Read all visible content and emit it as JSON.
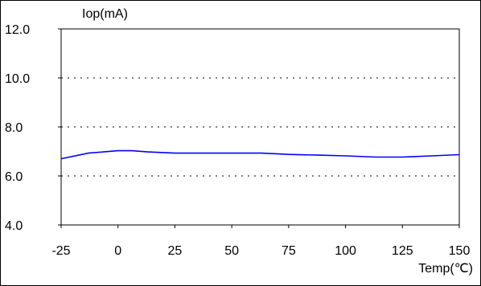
{
  "chart_data": {
    "type": "line",
    "title": "",
    "ylabel": "Iop(mA)",
    "xlabel": "Temp(℃)",
    "xlim": [
      -25,
      150
    ],
    "ylim": [
      4.0,
      12.0
    ],
    "xticks": [
      -25,
      0,
      25,
      50,
      75,
      100,
      125,
      150
    ],
    "xtick_labels": [
      "-25",
      "0",
      "25",
      "50",
      "75",
      "100",
      "125",
      "150"
    ],
    "yticks": [
      4.0,
      6.0,
      8.0,
      10.0,
      12.0
    ],
    "ytick_labels": [
      "4.0",
      "6.0",
      "8.0",
      "10.0",
      "12.0"
    ],
    "grid": "horizontal dotted",
    "line_color": "#0000ff",
    "series": [
      {
        "x": [
          -25,
          -13,
          0,
          6,
          13,
          25,
          38,
          50,
          63,
          75,
          88,
          100,
          113,
          125,
          138,
          150
        ],
        "y": [
          6.7,
          6.93,
          7.03,
          7.03,
          6.98,
          6.93,
          6.93,
          6.93,
          6.93,
          6.88,
          6.85,
          6.82,
          6.77,
          6.77,
          6.82,
          6.87
        ]
      }
    ]
  }
}
